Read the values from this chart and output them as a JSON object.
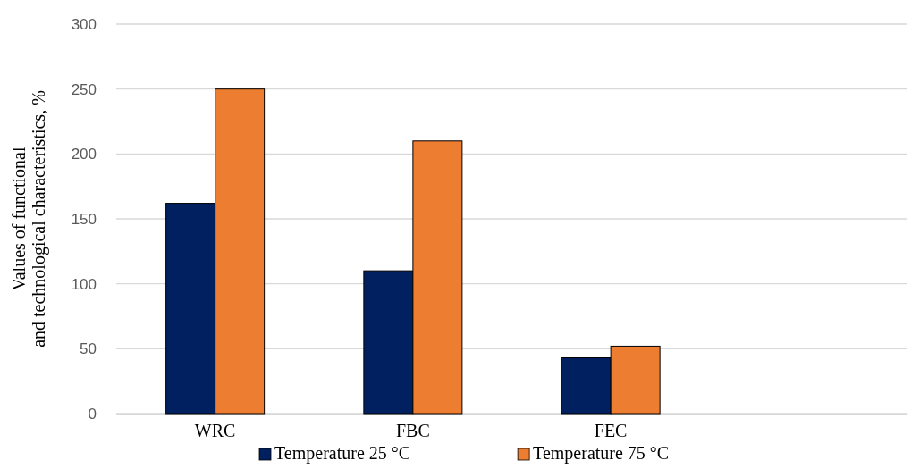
{
  "chart_data": {
    "type": "bar",
    "ylabel": "Values of functional\nand technological characteristics, %",
    "categories": [
      "WRC",
      "FBC",
      "FEC",
      null
    ],
    "series": [
      {
        "name": "Temperature 25 °C",
        "color": "#002060",
        "values": [
          162,
          110,
          43,
          null
        ]
      },
      {
        "name": "Temperature 75 °C",
        "color": "#ed7d31",
        "values": [
          250,
          210,
          52,
          null
        ]
      }
    ],
    "ylim": [
      0,
      300
    ],
    "yticks": [
      0,
      50,
      100,
      150,
      200,
      250,
      300
    ],
    "grid": "y",
    "legend": "bottom"
  }
}
